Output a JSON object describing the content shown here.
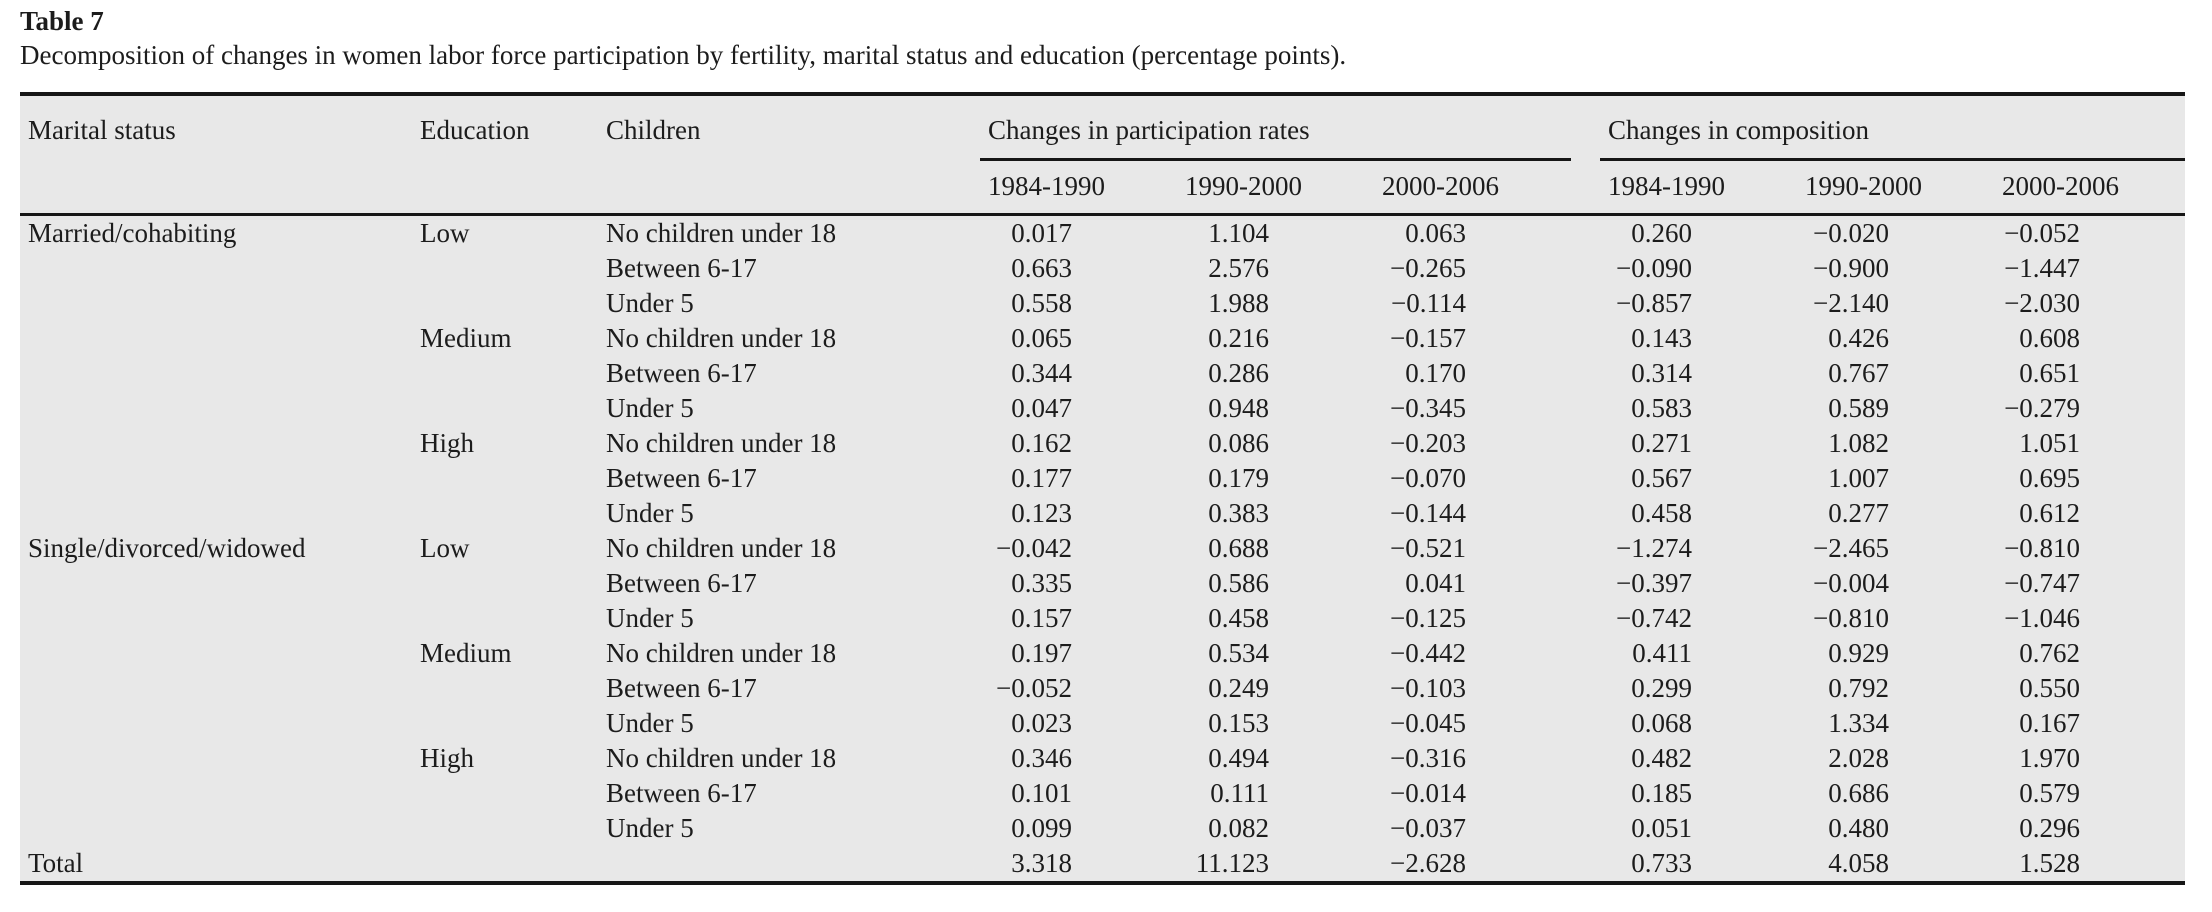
{
  "title": "Table 7",
  "caption": "Decomposition of changes in women labor force participation by fertility, marital status and education (percentage points).",
  "colors": {
    "page_background": "#ffffff",
    "table_background": "#e8e8e8",
    "rule": "#161616",
    "text": "#1c1c1c"
  },
  "table": {
    "col_headers": [
      "Marital status",
      "Education",
      "Children"
    ],
    "groups": [
      {
        "label": "Changes in participation rates",
        "periods": [
          "1984-1990",
          "1990-2000",
          "2000-2006"
        ]
      },
      {
        "label": "Changes in composition",
        "periods": [
          "1984-1990",
          "1990-2000",
          "2000-2006"
        ]
      }
    ],
    "rows": [
      {
        "marital": "Married/cohabiting",
        "education": "Low",
        "children": "No children under 18",
        "participation": [
          "0.017",
          "1.104",
          "0.063"
        ],
        "composition": [
          "0.260",
          "-0.020",
          "-0.052"
        ]
      },
      {
        "marital": "",
        "education": "",
        "children": "Between 6-17",
        "participation": [
          "0.663",
          "2.576",
          "-0.265"
        ],
        "composition": [
          "-0.090",
          "-0.900",
          "-1.447"
        ]
      },
      {
        "marital": "",
        "education": "",
        "children": "Under 5",
        "participation": [
          "0.558",
          "1.988",
          "-0.114"
        ],
        "composition": [
          "-0.857",
          "-2.140",
          "-2.030"
        ]
      },
      {
        "marital": "",
        "education": "Medium",
        "children": "No children under 18",
        "participation": [
          "0.065",
          "0.216",
          "-0.157"
        ],
        "composition": [
          "0.143",
          "0.426",
          "0.608"
        ]
      },
      {
        "marital": "",
        "education": "",
        "children": "Between 6-17",
        "participation": [
          "0.344",
          "0.286",
          "0.170"
        ],
        "composition": [
          "0.314",
          "0.767",
          "0.651"
        ]
      },
      {
        "marital": "",
        "education": "",
        "children": "Under 5",
        "participation": [
          "0.047",
          "0.948",
          "-0.345"
        ],
        "composition": [
          "0.583",
          "0.589",
          "-0.279"
        ]
      },
      {
        "marital": "",
        "education": "High",
        "children": "No children under 18",
        "participation": [
          "0.162",
          "0.086",
          "-0.203"
        ],
        "composition": [
          "0.271",
          "1.082",
          "1.051"
        ]
      },
      {
        "marital": "",
        "education": "",
        "children": "Between 6-17",
        "participation": [
          "0.177",
          "0.179",
          "-0.070"
        ],
        "composition": [
          "0.567",
          "1.007",
          "0.695"
        ]
      },
      {
        "marital": "",
        "education": "",
        "children": "Under 5",
        "participation": [
          "0.123",
          "0.383",
          "-0.144"
        ],
        "composition": [
          "0.458",
          "0.277",
          "0.612"
        ]
      },
      {
        "marital": "Single/divorced/widowed",
        "education": "Low",
        "children": "No children under 18",
        "participation": [
          "-0.042",
          "0.688",
          "-0.521"
        ],
        "composition": [
          "-1.274",
          "-2.465",
          "-0.810"
        ]
      },
      {
        "marital": "",
        "education": "",
        "children": "Between 6-17",
        "participation": [
          "0.335",
          "0.586",
          "0.041"
        ],
        "composition": [
          "-0.397",
          "-0.004",
          "-0.747"
        ]
      },
      {
        "marital": "",
        "education": "",
        "children": "Under 5",
        "participation": [
          "0.157",
          "0.458",
          "-0.125"
        ],
        "composition": [
          "-0.742",
          "-0.810",
          "-1.046"
        ]
      },
      {
        "marital": "",
        "education": "Medium",
        "children": "No children under 18",
        "participation": [
          "0.197",
          "0.534",
          "-0.442"
        ],
        "composition": [
          "0.411",
          "0.929",
          "0.762"
        ]
      },
      {
        "marital": "",
        "education": "",
        "children": "Between 6-17",
        "participation": [
          "-0.052",
          "0.249",
          "-0.103"
        ],
        "composition": [
          "0.299",
          "0.792",
          "0.550"
        ]
      },
      {
        "marital": "",
        "education": "",
        "children": "Under 5",
        "participation": [
          "0.023",
          "0.153",
          "-0.045"
        ],
        "composition": [
          "0.068",
          "1.334",
          "0.167"
        ]
      },
      {
        "marital": "",
        "education": "High",
        "children": "No children under 18",
        "participation": [
          "0.346",
          "0.494",
          "-0.316"
        ],
        "composition": [
          "0.482",
          "2.028",
          "1.970"
        ]
      },
      {
        "marital": "",
        "education": "",
        "children": "Between 6-17",
        "participation": [
          "0.101",
          "0.111",
          "-0.014"
        ],
        "composition": [
          "0.185",
          "0.686",
          "0.579"
        ]
      },
      {
        "marital": "",
        "education": "",
        "children": "Under 5",
        "participation": [
          "0.099",
          "0.082",
          "-0.037"
        ],
        "composition": [
          "0.051",
          "0.480",
          "0.296"
        ]
      }
    ],
    "total": {
      "label": "Total",
      "participation": [
        "3.318",
        "11.123",
        "-2.628"
      ],
      "composition": [
        "0.733",
        "4.058",
        "1.528"
      ]
    }
  }
}
